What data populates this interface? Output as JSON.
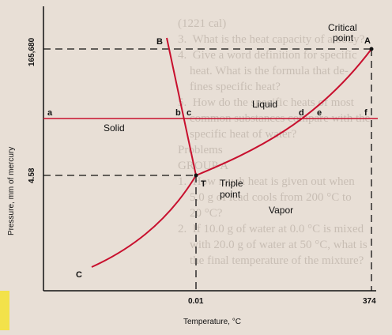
{
  "diagram": {
    "y_axis_label": "Pressure, mm of mercury",
    "x_axis_label": "Temperature, °C",
    "y_ticks": [
      "4.58",
      "165,680"
    ],
    "x_ticks": [
      "0.01",
      "374"
    ],
    "points": {
      "A": "A",
      "B": "B",
      "C": "C",
      "T": "T",
      "a": "a",
      "b": "b",
      "c": "c",
      "d": "d",
      "e": "e",
      "f": "f"
    },
    "critical_point": [
      "Critical",
      "point"
    ],
    "triple_point": [
      "Triple",
      "point"
    ],
    "regions": {
      "solid": "Solid",
      "liquid": "Liquid",
      "vapor": "Vapor"
    },
    "colors": {
      "curve": "#c8102e",
      "text": "#111111",
      "paper": "#e8dfd6"
    }
  },
  "background_text": [
    "(1221 cal)",
    "3.  What is the heat capacity of a body?",
    "4.  Give a word definition for specific",
    "    heat. What is the formula that de-",
    "    fines specific heat?",
    "5.  How do the specific heats of most",
    "    common substances compare with the",
    "    specific heat of water?",
    "Problems",
    "GROUP A",
    "1.  How much heat is given out when",
    "    5.0 g of lead cools from 200 °C to",
    "    20 °C?",
    "2.  If 10.0 g of water at 0.0 °C is mixed",
    "    with 20.0 g of water at 50 °C, what is",
    "    the final temperature of the mixture?"
  ]
}
